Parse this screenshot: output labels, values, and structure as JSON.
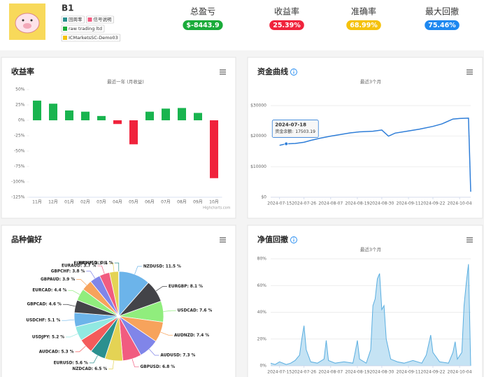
{
  "header": {
    "name": "B1",
    "tags": [
      "回周率",
      "信号说明",
      "raw trading ltd",
      "ICMarketsSC-Demo03"
    ],
    "stats": [
      {
        "label": "总盈亏",
        "value": "$-8443.9",
        "color": "#1aab3a"
      },
      {
        "label": "收益率",
        "value": "25.39%",
        "color": "#f0233c"
      },
      {
        "label": "准确率",
        "value": "68.99%",
        "color": "#f5c20d"
      },
      {
        "label": "最大回撤",
        "value": "75.46%",
        "color": "#1e88f0"
      }
    ]
  },
  "chart_data": [
    {
      "type": "bar",
      "title": "收益率",
      "subtitle": "最近一年 (月收益)",
      "categories": [
        "11月",
        "12月",
        "01月",
        "02月",
        "03月",
        "04月",
        "05月",
        "06月",
        "07月",
        "08月",
        "09月",
        "10月"
      ],
      "values": [
        32,
        27,
        16,
        14,
        7,
        -6,
        -39,
        14,
        19,
        20,
        12,
        -94
      ],
      "positive_color": "#19b44f",
      "negative_color": "#f0233c",
      "ylim": [
        -125,
        50
      ],
      "yticks": [
        {
          "value": -125,
          "label": "-125%"
        },
        {
          "value": -100,
          "label": "-100%"
        },
        {
          "value": -75,
          "label": "-75%"
        },
        {
          "value": -50,
          "label": "-50%"
        },
        {
          "value": -25,
          "label": "-25%"
        },
        {
          "value": 0,
          "label": "0%"
        },
        {
          "value": 25,
          "label": "25%"
        },
        {
          "value": 50,
          "label": "50%"
        }
      ],
      "grid": false,
      "credit": "Highcharts.com"
    },
    {
      "type": "line",
      "title": "资金曲线",
      "subtitle": "最近3个月",
      "x": [
        "2024-07-15",
        "2024-07-18",
        "2024-07-22",
        "2024-07-26",
        "2024-07-29",
        "2024-08-02",
        "2024-08-07",
        "2024-08-12",
        "2024-08-16",
        "2024-08-20",
        "2024-08-26",
        "2024-08-30",
        "2024-09-02",
        "2024-09-05",
        "2024-09-11",
        "2024-09-16",
        "2024-09-22",
        "2024-09-26",
        "2024-10-01",
        "2024-10-04",
        "2024-10-08",
        "2024-10-09"
      ],
      "values": [
        17000,
        17503.19,
        17600,
        18000,
        18600,
        19300,
        20000,
        20600,
        21100,
        21400,
        21600,
        22000,
        20000,
        21000,
        21700,
        22300,
        23200,
        24000,
        25600,
        25800,
        25900,
        1800
      ],
      "color": "#2f7ed8",
      "xlim": [
        "2024-07-11",
        "2024-10-09"
      ],
      "xticks": [
        "2024-07-15",
        "2024-07-26",
        "2024-08-07",
        "2024-08-19",
        "2024-08-30",
        "2024-09-11",
        "2024-09-22",
        "2024-10-04"
      ],
      "ylim": [
        0,
        30000
      ],
      "yticks": [
        {
          "value": 0,
          "label": "$0"
        },
        {
          "value": 10000,
          "label": "$10000"
        },
        {
          "value": 20000,
          "label": "$20000"
        },
        {
          "value": 30000,
          "label": "$30000"
        }
      ],
      "grid": true,
      "tooltip": {
        "title": "2024-07-18",
        "label": "资金余额:",
        "value": 17503.19
      }
    },
    {
      "type": "pie",
      "title": "品种偏好",
      "categories": [
        "NZDUSD",
        "EURGBP",
        "USDCAD",
        "AUDNZD",
        "AUDUSD",
        "GBPUSD",
        "NZDCAD",
        "EURUSD",
        "AUDCAD",
        "USDJPY",
        "USDCHF",
        "GBPCAD",
        "EURCAD",
        "GBPAUD",
        "GBPCHF",
        "EURAUD",
        "EURCHF",
        "XAUUSD"
      ],
      "values": [
        11.5,
        8.1,
        7.6,
        7.4,
        7.3,
        6.8,
        6.5,
        5.6,
        5.3,
        5.2,
        5.1,
        4.6,
        4.4,
        3.9,
        3.8,
        3.7,
        3.3,
        0.1
      ],
      "value_labels": [
        "NZDUSD: 11.5 %",
        "EURGBP: 8.1 %",
        "USDCAD: 7.6 %",
        "AUDNZD: 7.4 %",
        "AUDUSD: 7.3 %",
        "GBPUSD: 6.8 %",
        "NZDCAD: 6.5 %",
        "EURUSD: 5.6 %",
        "AUDCAD: 5.3 %",
        "USDJPY: 5.2 %",
        "USDCHF: 5.1 %",
        "GBPCAD: 4.6 %",
        "EURCAD: 4.4 %",
        "GBPAUD: 3.9 %",
        "GBPCHF: 3.8 %",
        "EURAUD: 3.7 %",
        "EURCHF: 3.3 %",
        "XAUUSD: 0.1 %"
      ],
      "colors": [
        "#6cb4ea",
        "#434348",
        "#90ed7d",
        "#f7a35c",
        "#8085e9",
        "#f15c80",
        "#e4d354",
        "#2b908f",
        "#f45b5b",
        "#91e8e1",
        "#6cb4ea",
        "#434348",
        "#90ed7d",
        "#f7a35c",
        "#8085e9",
        "#f15c80",
        "#e4d354",
        "#2b908f"
      ]
    },
    {
      "type": "area",
      "title": "净值回撤",
      "subtitle": "最近3个月",
      "x": [
        "2024-07-11",
        "2024-07-13",
        "2024-07-15",
        "2024-07-18",
        "2024-07-20",
        "2024-07-22",
        "2024-07-24",
        "2024-07-25",
        "2024-07-26",
        "2024-07-27",
        "2024-07-29",
        "2024-08-01",
        "2024-08-04",
        "2024-08-05",
        "2024-08-06",
        "2024-08-09",
        "2024-08-13",
        "2024-08-17",
        "2024-08-18",
        "2024-08-19",
        "2024-08-20",
        "2024-08-23",
        "2024-08-25",
        "2024-08-26",
        "2024-08-27",
        "2024-08-28",
        "2024-08-29",
        "2024-08-30",
        "2024-08-31",
        "2024-09-01",
        "2024-09-03",
        "2024-09-06",
        "2024-09-09",
        "2024-09-13",
        "2024-09-17",
        "2024-09-19",
        "2024-09-21",
        "2024-09-22",
        "2024-09-25",
        "2024-09-29",
        "2024-10-01",
        "2024-10-02",
        "2024-10-03",
        "2024-10-05",
        "2024-10-06",
        "2024-10-07",
        "2024-10-08",
        "2024-10-09"
      ],
      "values": [
        2,
        1,
        3,
        1,
        2,
        4,
        8,
        20,
        30,
        12,
        3,
        2,
        5,
        19,
        4,
        2,
        3,
        2,
        10,
        19,
        5,
        2,
        12,
        45,
        50,
        65,
        69,
        42,
        45,
        20,
        5,
        3,
        2,
        4,
        2,
        8,
        23,
        10,
        3,
        2,
        10,
        18,
        5,
        10,
        45,
        62,
        76,
        0
      ],
      "color": "#5aaee0",
      "xlim": [
        "2024-07-11",
        "2024-10-09"
      ],
      "xticks": [
        "2024-07-15",
        "2024-07-26",
        "2024-08-07",
        "2024-08-19",
        "2024-08-30",
        "2024-09-11",
        "2024-09-22",
        "2024-10-04"
      ],
      "ylim": [
        0,
        80
      ],
      "yticks": [
        {
          "value": 0,
          "label": "0%"
        },
        {
          "value": 20,
          "label": "20%"
        },
        {
          "value": 40,
          "label": "40%"
        },
        {
          "value": 60,
          "label": "60%"
        },
        {
          "value": 80,
          "label": "80%"
        }
      ],
      "grid": true
    }
  ]
}
